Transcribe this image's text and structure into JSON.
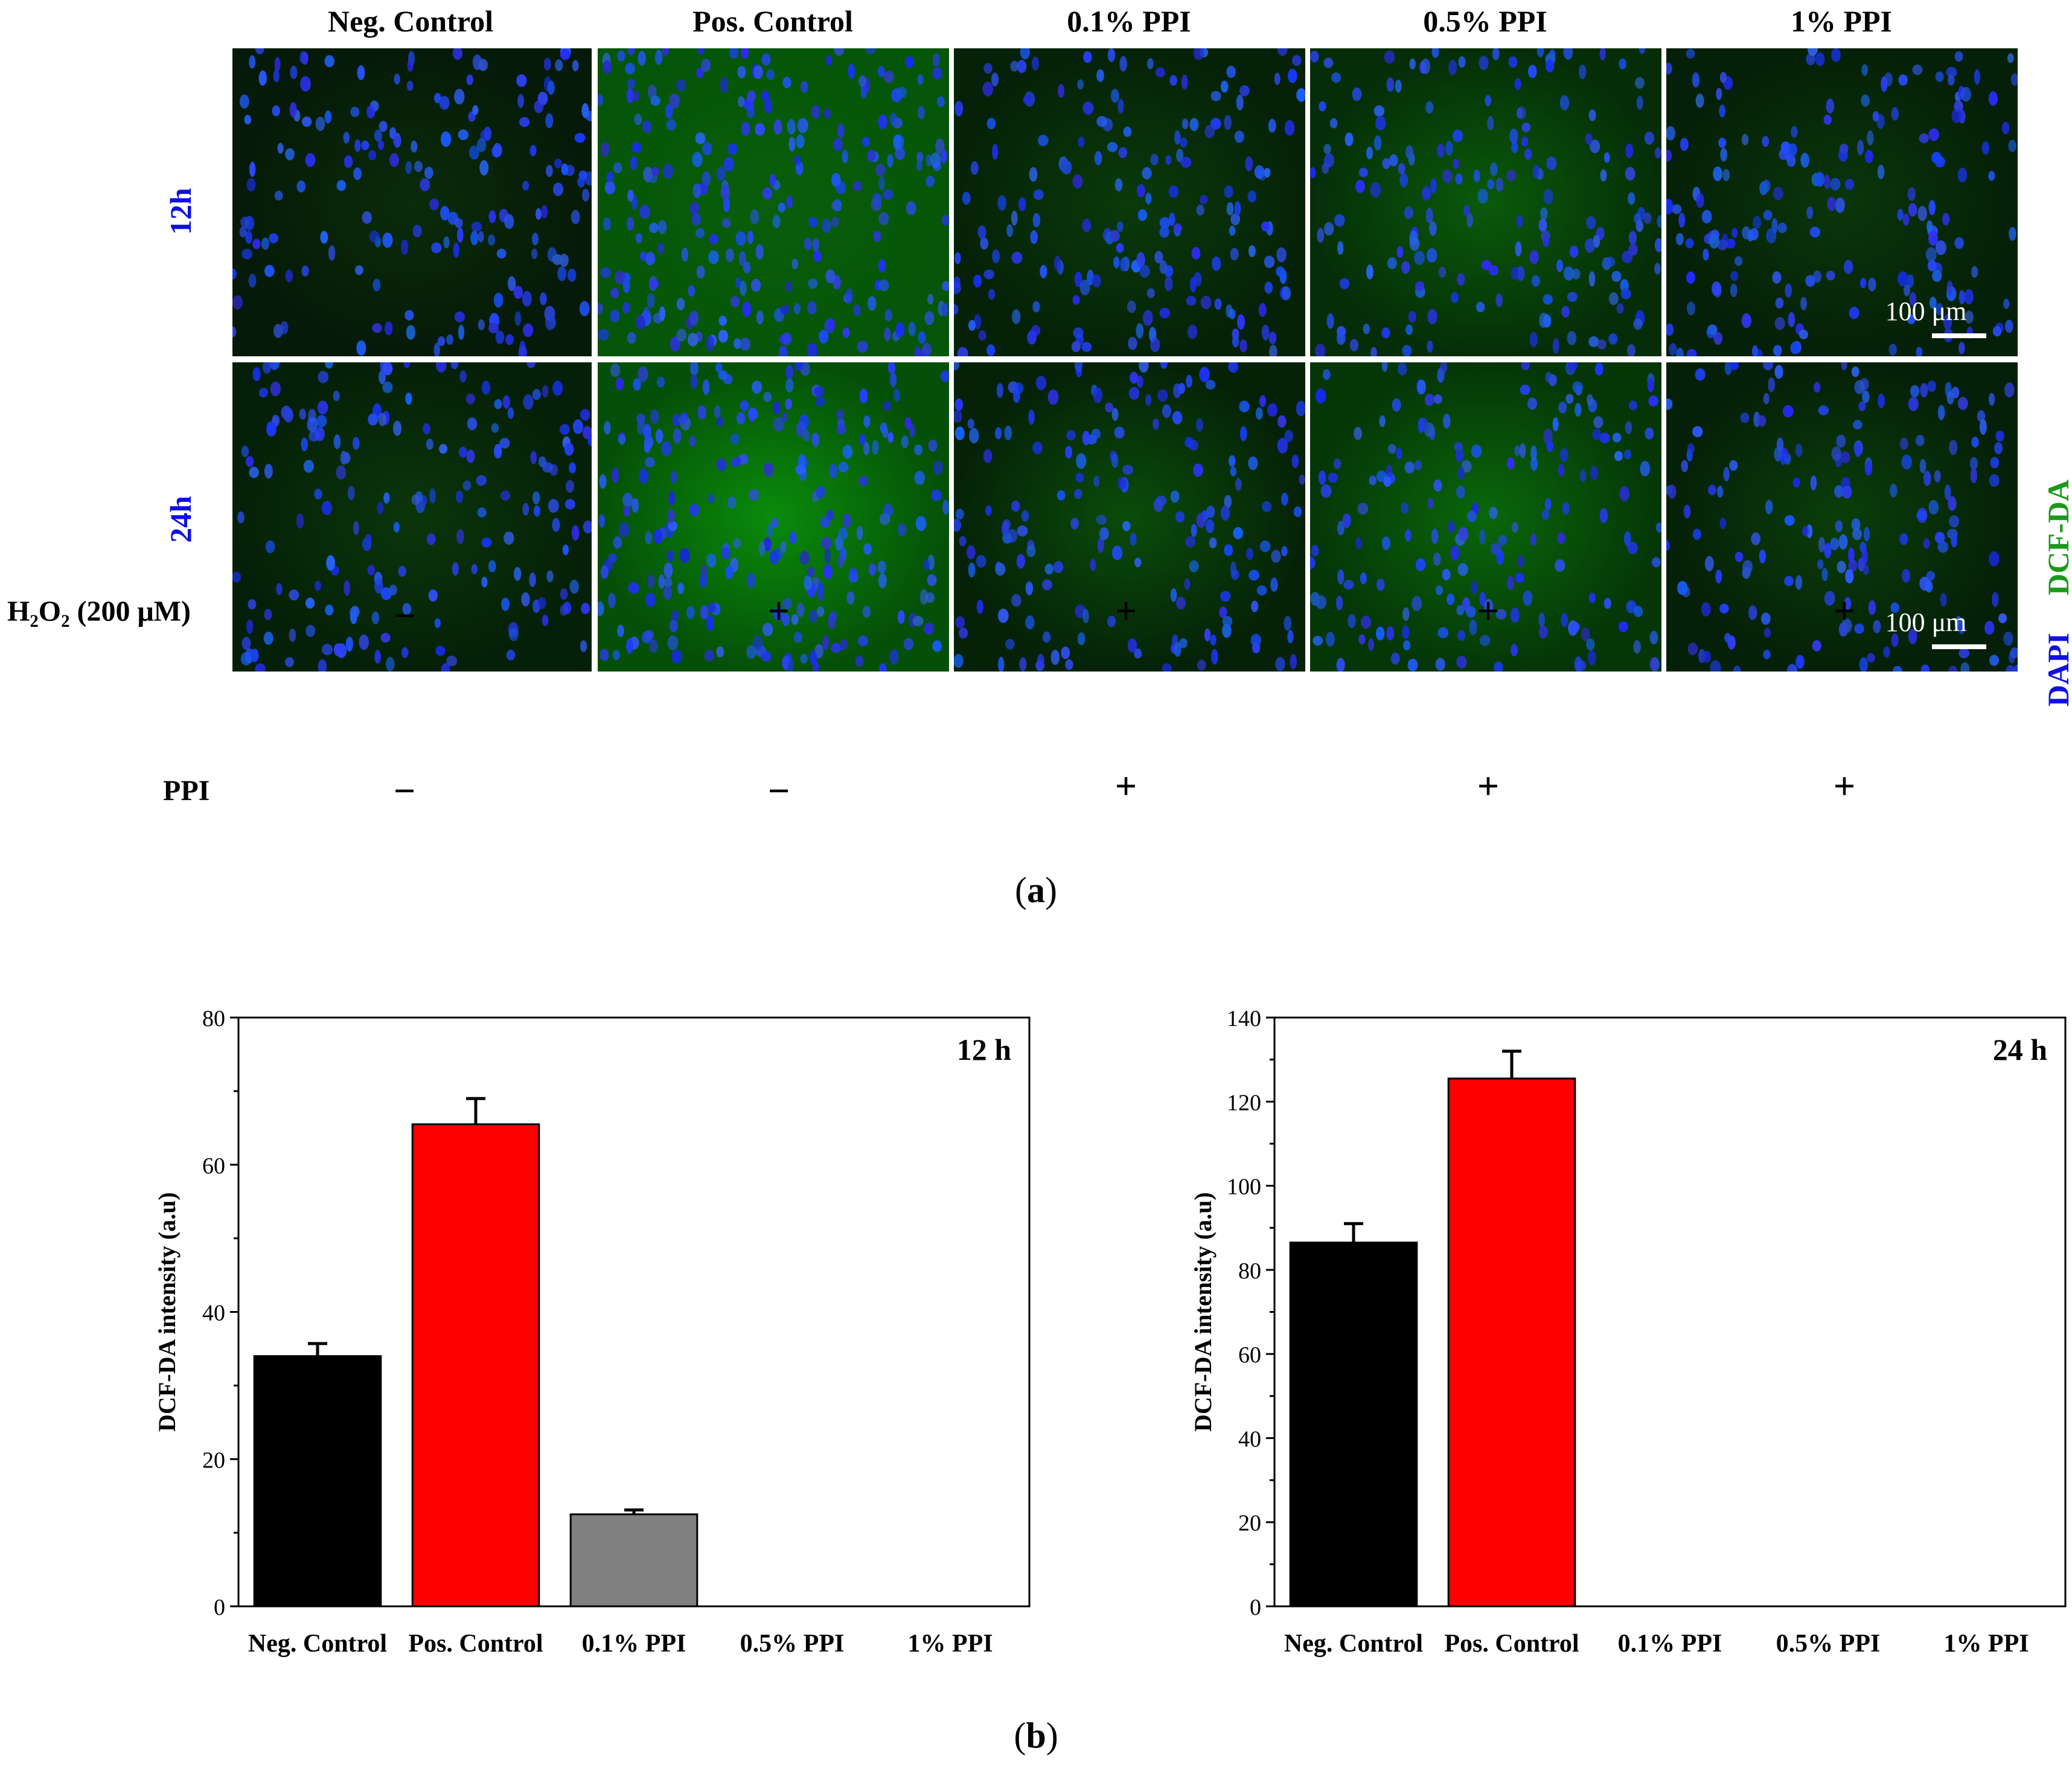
{
  "figure_a": {
    "columns": [
      "Neg. Control",
      "Pos. Control",
      "0.1% PPI",
      "0.5% PPI",
      "1% PPI"
    ],
    "rows": [
      "12h",
      "24h"
    ],
    "scale_bar_label": "100 μm",
    "stain_labels": {
      "dcfda": "DCF-DA",
      "dapi": "DAPI"
    },
    "stain_colors": {
      "dcfda": "#1a9a1a",
      "dapi": "#1010e0"
    },
    "treatments": [
      {
        "label": "H₂O₂ (200 μM)",
        "signs": [
          "−",
          "+",
          "+",
          "+",
          "+"
        ]
      },
      {
        "label": "PPI",
        "signs": [
          "−",
          "−",
          "+",
          "+",
          "+"
        ]
      }
    ],
    "caption_prefix": "(",
    "caption_letter": "a",
    "caption_suffix": ")"
  },
  "figure_b": {
    "caption_prefix": "(",
    "caption_letter": "b",
    "caption_suffix": ")"
  },
  "chart_data": [
    {
      "type": "bar",
      "title": "12 h",
      "xlabel": "",
      "ylabel": "DCF-DA intensity (a.u)",
      "categories": [
        "Neg. Control",
        "Pos. Control",
        "0.1% PPI",
        "0.5% PPI",
        "1% PPI"
      ],
      "values": [
        34,
        65.5,
        12.5,
        null,
        null
      ],
      "errors": [
        1.7,
        3.5,
        0.6,
        null,
        null
      ],
      "colors": [
        "#000000",
        "#ff0000",
        "#808080",
        "#ffffff",
        "#ffffff"
      ],
      "ylim": [
        0,
        80
      ],
      "yticks": [
        0,
        20,
        40,
        60,
        80
      ]
    },
    {
      "type": "bar",
      "title": "24 h",
      "xlabel": "",
      "ylabel": "DCF-DA intensity (a.u)",
      "categories": [
        "Neg. Control",
        "Pos. Control",
        "0.1% PPI",
        "0.5% PPI",
        "1% PPI"
      ],
      "values": [
        86.5,
        125.5,
        null,
        null,
        null
      ],
      "errors": [
        4.5,
        6.5,
        null,
        null,
        null
      ],
      "colors": [
        "#000000",
        "#ff0000",
        "#808080",
        "#ffffff",
        "#ffffff"
      ],
      "ylim": [
        0,
        140
      ],
      "yticks": [
        0,
        20,
        40,
        60,
        80,
        100,
        120,
        140
      ]
    }
  ]
}
